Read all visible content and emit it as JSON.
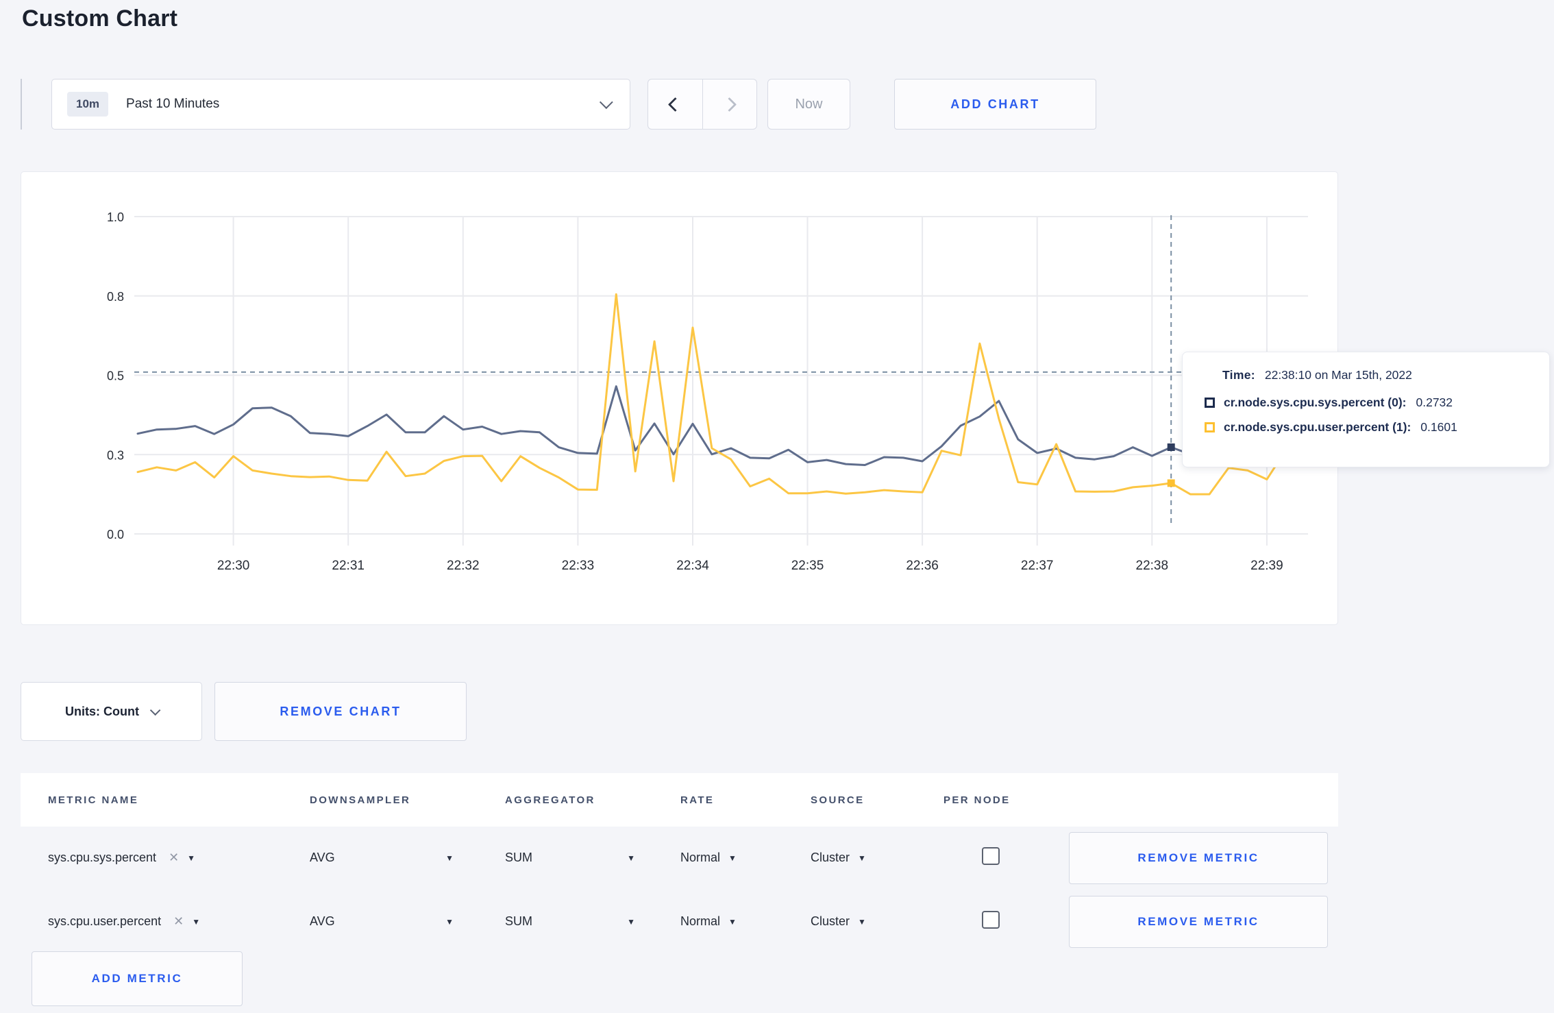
{
  "page_title": "Custom Chart",
  "toolbar": {
    "range_badge": "10m",
    "range_label": "Past 10 Minutes",
    "now_label": "Now",
    "add_chart_label": "ADD CHART"
  },
  "chart_data": {
    "type": "line",
    "x_start": "22:29:10",
    "x_interval_seconds": 10,
    "x_tick_labels": [
      "22:30",
      "22:31",
      "22:32",
      "22:33",
      "22:34",
      "22:35",
      "22:36",
      "22:37",
      "22:38",
      "22:39"
    ],
    "y_tick_labels": [
      "1.0",
      "0.8",
      "0.5",
      "0.3",
      "0.0"
    ],
    "y_tick_values": [
      1.0,
      0.75,
      0.5,
      0.25,
      0.0
    ],
    "ylim": [
      0,
      1
    ],
    "grid": true,
    "series": [
      {
        "name": "cr.node.sys.cpu.sys.percent (0)",
        "color": "#5f6d8c",
        "marker": "#2e3d5e",
        "values": [
          0.316,
          0.329,
          0.331,
          0.34,
          0.315,
          0.345,
          0.396,
          0.398,
          0.371,
          0.318,
          0.315,
          0.308,
          0.34,
          0.376,
          0.32,
          0.32,
          0.371,
          0.329,
          0.338,
          0.315,
          0.324,
          0.32,
          0.273,
          0.255,
          0.253,
          0.465,
          0.263,
          0.348,
          0.251,
          0.347,
          0.251,
          0.27,
          0.24,
          0.238,
          0.265,
          0.226,
          0.233,
          0.22,
          0.217,
          0.242,
          0.24,
          0.229,
          0.276,
          0.341,
          0.37,
          0.419,
          0.298,
          0.255,
          0.269,
          0.24,
          0.235,
          0.245,
          0.273,
          0.246,
          0.2732,
          0.251,
          0.27,
          0.295,
          0.305,
          0.31,
          0.305
        ]
      },
      {
        "name": "cr.node.sys.cpu.user.percent (1)",
        "color": "#fcc644",
        "marker": "#fdc030",
        "values": [
          0.195,
          0.21,
          0.2,
          0.226,
          0.178,
          0.245,
          0.2,
          0.19,
          0.182,
          0.179,
          0.181,
          0.17,
          0.168,
          0.259,
          0.182,
          0.19,
          0.23,
          0.245,
          0.246,
          0.166,
          0.245,
          0.208,
          0.178,
          0.14,
          0.139,
          0.755,
          0.197,
          0.607,
          0.166,
          0.65,
          0.27,
          0.235,
          0.15,
          0.174,
          0.128,
          0.128,
          0.134,
          0.127,
          0.131,
          0.138,
          0.134,
          0.131,
          0.262,
          0.248,
          0.6,
          0.363,
          0.163,
          0.156,
          0.283,
          0.134,
          0.133,
          0.134,
          0.147,
          0.152,
          0.1601,
          0.125,
          0.125,
          0.208,
          0.2,
          0.172,
          0.265
        ]
      }
    ],
    "crosshair": {
      "time_index": 54,
      "h_value": 0.51,
      "time": "22:38:10"
    }
  },
  "tooltip": {
    "time_label": "Time:",
    "time_value": "22:38:10 on Mar 15th, 2022",
    "rows": [
      {
        "name": "cr.node.sys.cpu.sys.percent (0):",
        "value": "0.2732",
        "color": "#1c2b4d"
      },
      {
        "name": "cr.node.sys.cpu.user.percent (1):",
        "value": "0.1601",
        "color": "#fdc030"
      }
    ]
  },
  "chart_actions": {
    "units_label": "Units: Count",
    "remove_chart_label": "REMOVE CHART"
  },
  "metrics_table": {
    "headers": [
      "METRIC NAME",
      "DOWNSAMPLER",
      "AGGREGATOR",
      "RATE",
      "SOURCE",
      "PER NODE"
    ],
    "rows": [
      {
        "metric": "sys.cpu.sys.percent",
        "downsampler": "AVG",
        "aggregator": "SUM",
        "rate": "Normal",
        "source": "Cluster",
        "per_node": false,
        "remove_label": "REMOVE METRIC"
      },
      {
        "metric": "sys.cpu.user.percent",
        "downsampler": "AVG",
        "aggregator": "SUM",
        "rate": "Normal",
        "source": "Cluster",
        "per_node": false,
        "remove_label": "REMOVE METRIC"
      }
    ],
    "add_metric_label": "ADD METRIC"
  },
  "colors": {
    "accent_blue": "#2b5cee",
    "page_bg": "#f4f5f9",
    "grid": "#e9eaee",
    "crosshair": "#7b8fa3"
  }
}
